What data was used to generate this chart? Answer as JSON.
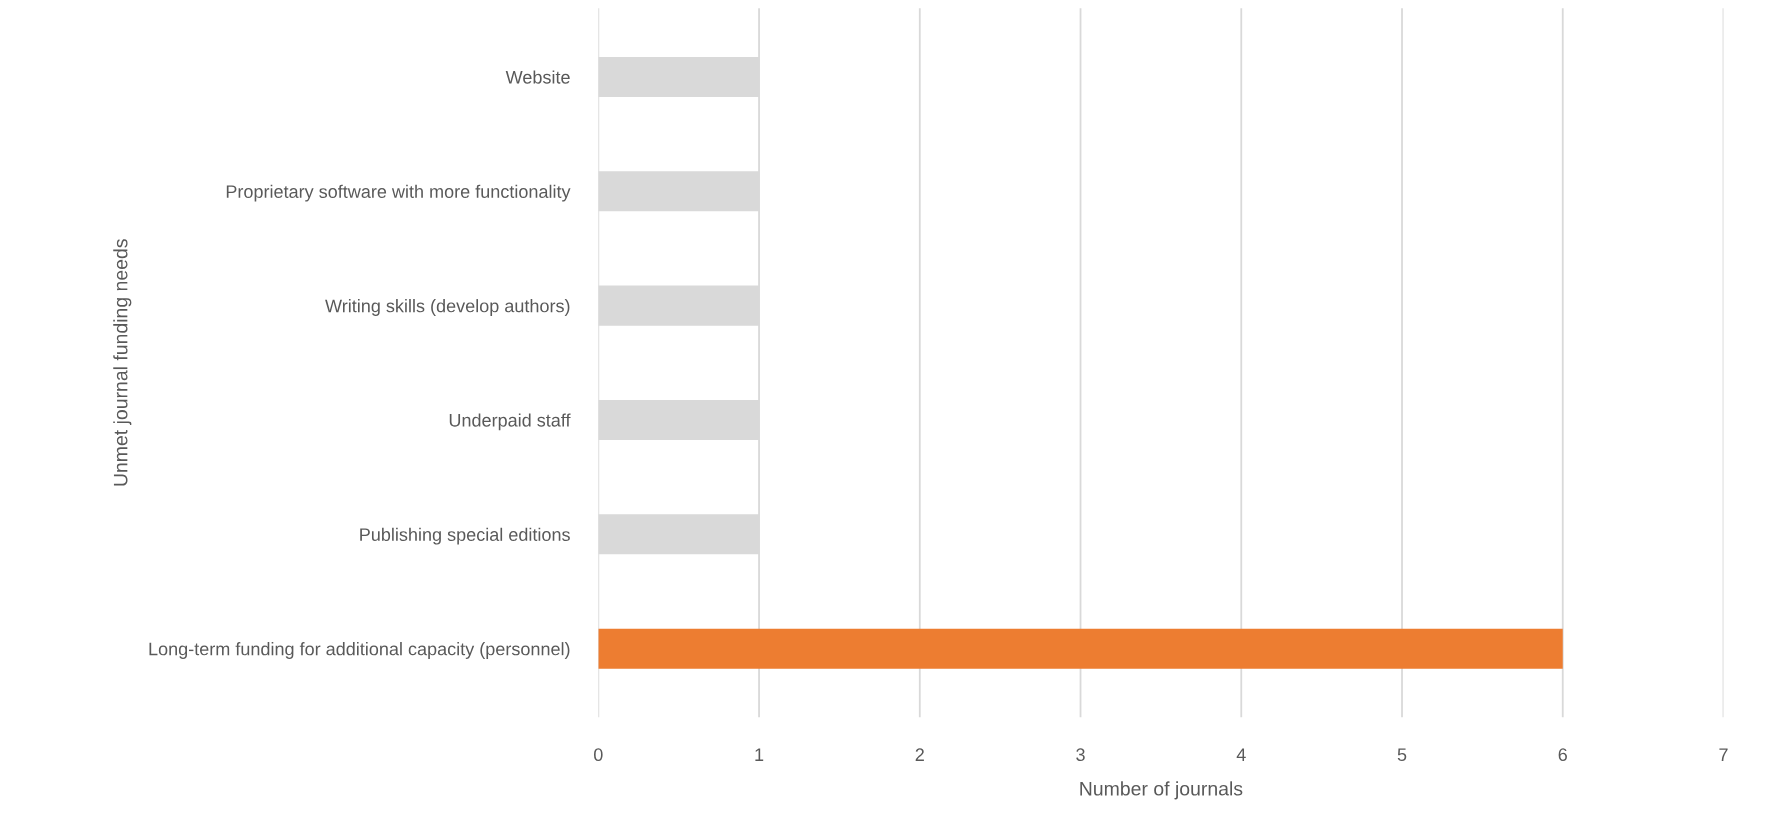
{
  "chart_data": {
    "type": "bar",
    "orientation": "horizontal",
    "categories": [
      "Website",
      "Proprietary software with more functionality",
      "Writing skills (develop authors)",
      "Underpaid staff",
      "Publishing special editions",
      "Long-term funding for additional capacity (personnel)"
    ],
    "values": [
      1,
      1,
      1,
      1,
      1,
      6
    ],
    "colors": [
      "#d9d9d9",
      "#d9d9d9",
      "#d9d9d9",
      "#d9d9d9",
      "#d9d9d9",
      "#ed7d31"
    ],
    "xlabel": "Number of journals",
    "ylabel": "Unmet journal funding needs",
    "xlim": [
      0,
      7
    ],
    "xticks": [
      0,
      1,
      2,
      3,
      4,
      5,
      6,
      7
    ],
    "grid": "x"
  }
}
